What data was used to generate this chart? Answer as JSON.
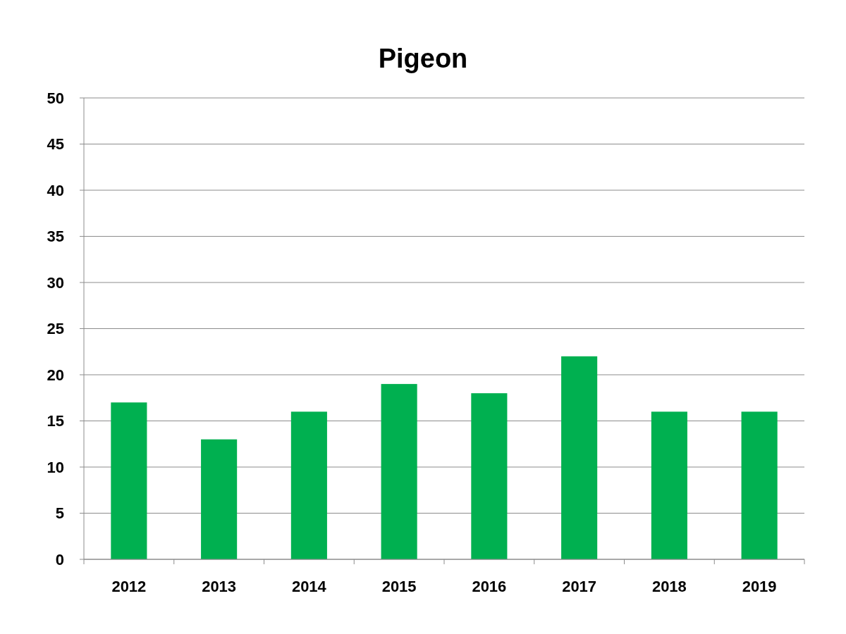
{
  "chart_data": {
    "type": "bar",
    "title": "Pigeon",
    "categories": [
      "2012",
      "2013",
      "2014",
      "2015",
      "2016",
      "2017",
      "2018",
      "2019"
    ],
    "values": [
      17,
      13,
      16,
      19,
      18,
      22,
      16,
      16
    ],
    "color": "#00b050",
    "ylim": [
      0,
      50
    ],
    "yticks": [
      0,
      5,
      10,
      15,
      20,
      25,
      30,
      35,
      40,
      45,
      50
    ],
    "grid": "y"
  }
}
